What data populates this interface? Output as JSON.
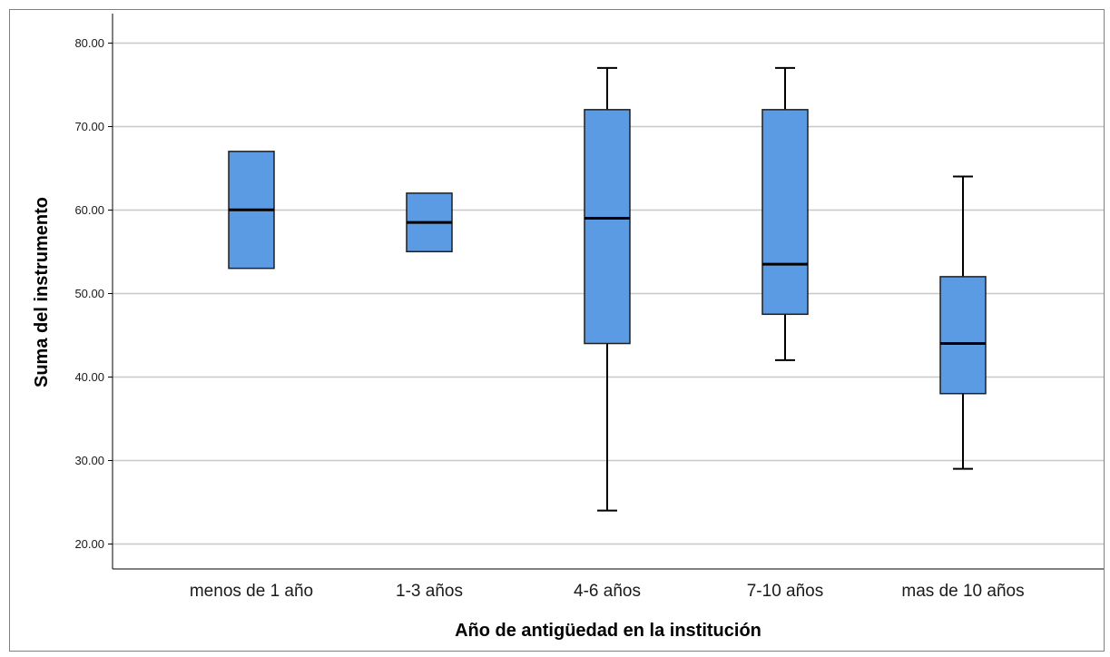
{
  "chart_data": {
    "type": "boxplot",
    "title": "",
    "xlabel": "Año de antigüedad en la institución",
    "ylabel": "Suma del instrumento",
    "ylim": [
      17,
      83.5
    ],
    "yticks": [
      20,
      30,
      40,
      50,
      60,
      70,
      80
    ],
    "ytick_labels": [
      "20.00",
      "30.00",
      "40.00",
      "50.00",
      "60.00",
      "70.00",
      "80.00"
    ],
    "grid": "horizontal",
    "box_color": "#5b9be3",
    "categories": [
      "menos de 1 año",
      "1-3 años",
      "4-6 años",
      "7-10 años",
      "mas de 10 años"
    ],
    "boxes": [
      {
        "category": "menos de 1 año",
        "min": 53,
        "q1": 53,
        "median": 60,
        "q3": 67,
        "max": 67
      },
      {
        "category": "1-3 años",
        "min": 55,
        "q1": 55,
        "median": 58.5,
        "q3": 62,
        "max": 62
      },
      {
        "category": "4-6 años",
        "min": 24,
        "q1": 44,
        "median": 59,
        "q3": 72,
        "max": 77
      },
      {
        "category": "7-10 años",
        "min": 42,
        "q1": 47.5,
        "median": 53.5,
        "q3": 72,
        "max": 77
      },
      {
        "category": "mas de 10 años",
        "min": 29,
        "q1": 38,
        "median": 44,
        "q3": 52,
        "max": 64
      }
    ]
  }
}
